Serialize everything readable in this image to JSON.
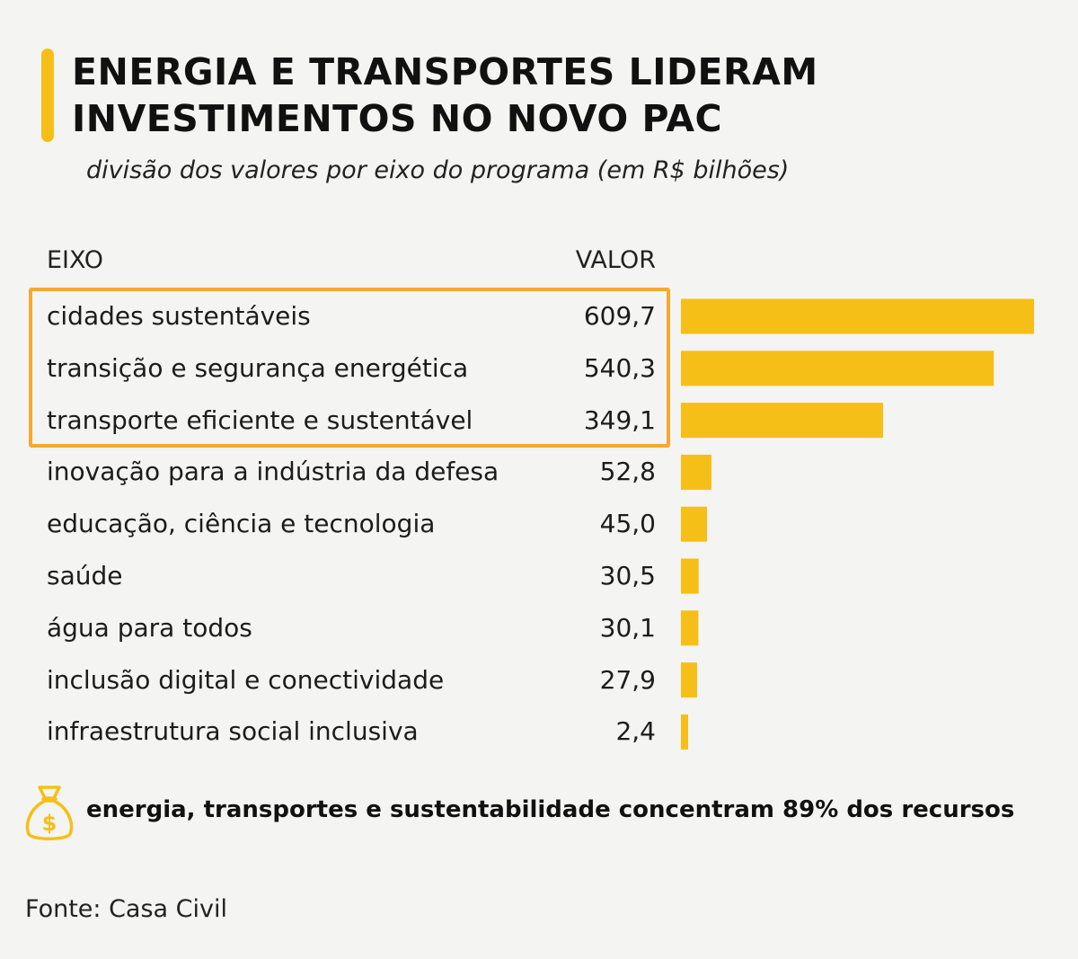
{
  "header": {
    "title_line1": "ENERGIA E TRANSPORTES LIDERAM",
    "title_line2": "INVESTIMENTOS NO NOVO PAC",
    "subtitle": "divisão dos valores por eixo do programa (em R$ bilhões)"
  },
  "chart_data": {
    "type": "bar",
    "orientation": "horizontal",
    "column_headers": {
      "category": "EIXO",
      "value": "VALOR"
    },
    "categories": [
      "cidades sustentáveis",
      "transição e segurança energética",
      "transporte eficiente e sustentável",
      "inovação para a indústria da defesa",
      "educação, ciência e tecnologia",
      "saúde",
      "água para todos",
      "inclusão digital e conectividade",
      "infraestrutura social inclusiva"
    ],
    "values": [
      609.7,
      540.3,
      349.1,
      52.8,
      45.0,
      30.5,
      30.1,
      27.9,
      2.4
    ],
    "value_labels": [
      "609,7",
      "540,3",
      "349,1",
      "52,8",
      "45,0",
      "30,5",
      "30,1",
      "27,9",
      "2,4"
    ],
    "highlighted_count": 3,
    "bar_color": "#f6bf17",
    "highlight_color": "#f3a934"
  },
  "note": {
    "icon": "money-bag-icon",
    "text": "energia, transportes e sustentabilidade concentram 89% dos recursos"
  },
  "source": "Fonte: Casa Civil"
}
